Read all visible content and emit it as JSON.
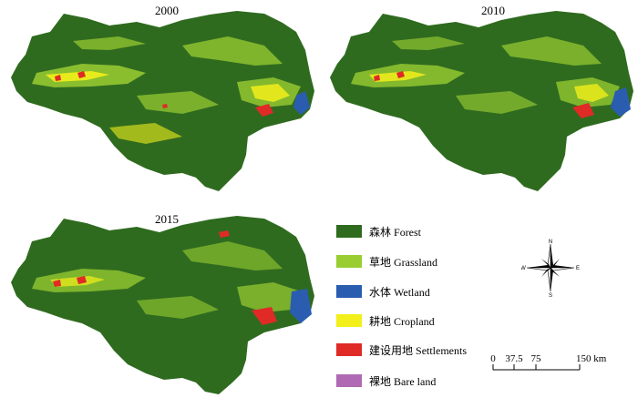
{
  "panels": [
    {
      "year": "2000"
    },
    {
      "year": "2010"
    },
    {
      "year": "2015"
    }
  ],
  "legend": [
    {
      "zh": "森林",
      "en": "Forest",
      "color": "#2f6b1f"
    },
    {
      "zh": "草地",
      "en": "Grassland",
      "color": "#9acd32"
    },
    {
      "zh": "水体",
      "en": "Wetland",
      "color": "#2a5db0"
    },
    {
      "zh": "耕地",
      "en": "Cropland",
      "color": "#f2ef1a"
    },
    {
      "zh": "建设用地",
      "en": "Settlements",
      "color": "#e02a26"
    },
    {
      "zh": "裸地",
      "en": "Bare land",
      "color": "#b06ab3"
    }
  ],
  "compass": {
    "n": "N",
    "s": "S",
    "e": "E",
    "w": "W"
  },
  "scale": {
    "ticks": [
      "0",
      "37.5",
      "75",
      "150 km"
    ]
  }
}
